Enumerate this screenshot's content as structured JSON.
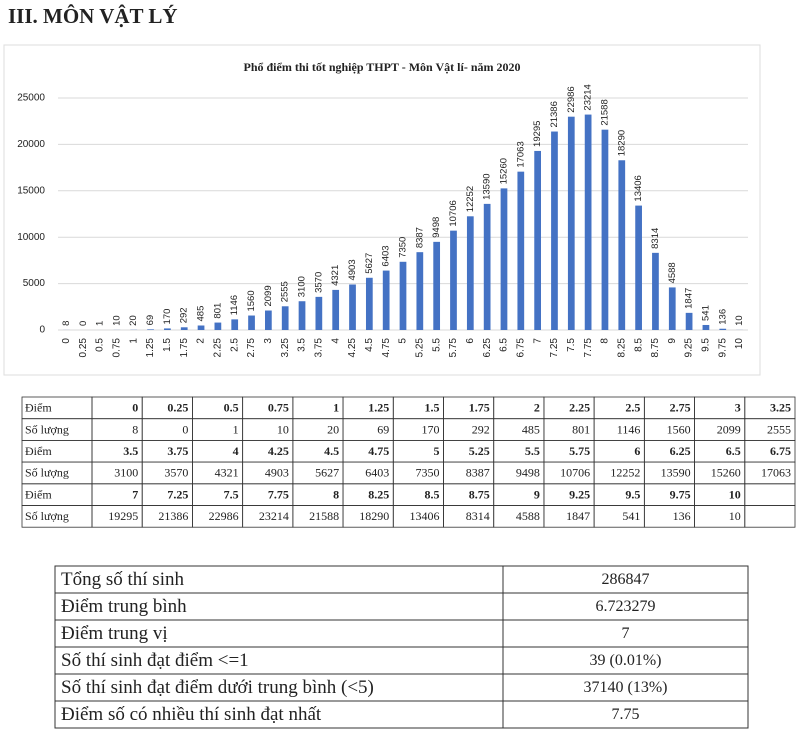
{
  "heading": "III. MÔN VẬT LÝ",
  "chart_data": {
    "type": "bar",
    "title": "Phổ điểm thi tốt nghiệp THPT - Môn Vật lí- năm 2020",
    "categories": [
      "0",
      "0.25",
      "0.5",
      "0.75",
      "1",
      "1.25",
      "1.5",
      "1.75",
      "2",
      "2.25",
      "2.5",
      "2.75",
      "3",
      "3.25",
      "3.5",
      "3.75",
      "4",
      "4.25",
      "4.5",
      "4.75",
      "5",
      "5.25",
      "5.5",
      "5.75",
      "6",
      "6.25",
      "6.5",
      "6.75",
      "7",
      "7.25",
      "7.5",
      "7.75",
      "8",
      "8.25",
      "8.5",
      "8.75",
      "9",
      "9.25",
      "9.5",
      "9.75",
      "10"
    ],
    "values": [
      8,
      0,
      1,
      10,
      20,
      69,
      170,
      292,
      485,
      801,
      1146,
      1560,
      2099,
      2555,
      3100,
      3570,
      4321,
      4903,
      5627,
      6403,
      7350,
      8387,
      9498,
      10706,
      12252,
      13590,
      15260,
      17063,
      19295,
      21386,
      22986,
      23214,
      21588,
      18290,
      13406,
      8314,
      4588,
      1847,
      541,
      136,
      10
    ],
    "color": "#4472c4",
    "ylim": [
      0,
      25000
    ],
    "yticks": [
      0,
      5000,
      10000,
      15000,
      20000,
      25000
    ],
    "grid": true
  },
  "table": {
    "rows": [
      [
        "Điểm",
        0,
        0.25,
        0.5,
        0.75,
        1,
        1.25,
        1.5,
        1.75,
        2,
        2.25,
        2.5,
        2.75,
        3,
        3.25
      ],
      [
        "Số lượng",
        8,
        0,
        1,
        10,
        20,
        69,
        170,
        292,
        485,
        801,
        1146,
        1560,
        2099,
        2555
      ],
      [
        "Điểm",
        3.5,
        3.75,
        4,
        4.25,
        4.5,
        4.75,
        5,
        5.25,
        5.5,
        5.75,
        6,
        6.25,
        6.5,
        6.75
      ],
      [
        "Số lượng",
        3100,
        3570,
        4321,
        4903,
        5627,
        6403,
        7350,
        8387,
        9498,
        10706,
        12252,
        13590,
        15260,
        17063
      ],
      [
        "Điểm",
        7,
        7.25,
        7.5,
        7.75,
        8,
        8.25,
        8.5,
        8.75,
        9,
        9.25,
        9.5,
        9.75,
        10
      ],
      [
        "Số lượng",
        19295,
        21386,
        22986,
        23214,
        21588,
        18290,
        13406,
        8314,
        4588,
        1847,
        541,
        136,
        10
      ]
    ]
  },
  "summary": {
    "rows": [
      [
        "Tổng số thí sinh",
        286847
      ],
      [
        "Điểm trung bình",
        6.723279
      ],
      [
        "Điểm trung vị",
        7
      ],
      [
        "Số thí sinh đạt điểm <=1",
        "39 (0.01%)"
      ],
      [
        "Số thí sinh đạt điểm dưới trung bình (<5)",
        "37140 (13%)"
      ],
      [
        "Điểm số có nhiều thí sinh đạt nhất",
        7.75
      ]
    ]
  }
}
